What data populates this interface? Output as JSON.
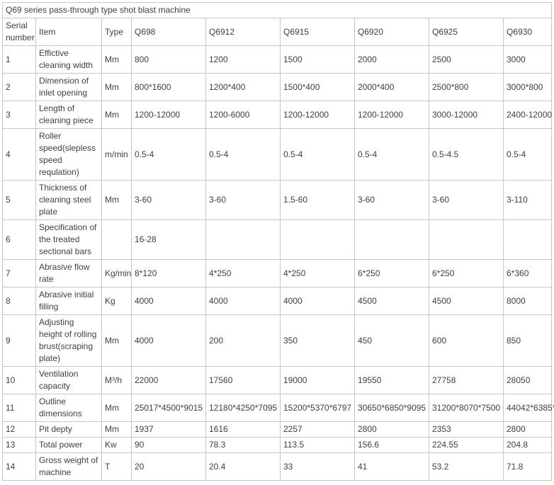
{
  "page_title": "Q69 series pass-through type shot blast machine",
  "table": {
    "columns": [
      "Serial number",
      "Item",
      "Type",
      "Q698",
      "Q6912",
      "Q6915",
      "Q6920",
      "Q6925",
      "Q6930"
    ],
    "rows": [
      {
        "serial": "1",
        "item": "Effictive cleaning width",
        "unit": "Mm",
        "values": [
          "800",
          "1200",
          "1500",
          "2000",
          "2500",
          "3000"
        ]
      },
      {
        "serial": "2",
        "item": "Dimension of inlet opening",
        "unit": "Mm",
        "values": [
          "800*1600",
          "1200*400",
          "1500*400",
          "2000*400",
          "2500*800",
          "3000*800"
        ]
      },
      {
        "serial": "3",
        "item": "Length of cleaning piece",
        "unit": "Mm",
        "values": [
          "1200-12000",
          "1200-6000",
          "1200-12000",
          "1200-12000",
          "3000-12000",
          "2400-12000"
        ]
      },
      {
        "serial": "4",
        "item": "Roller speed(slepless speed requlation)",
        "unit": "m/min",
        "values": [
          "0.5-4",
          "0.5-4",
          "0.5-4",
          "0.5-4",
          "0.5-4.5",
          "0.5-4"
        ]
      },
      {
        "serial": "5",
        "item": "Thickness of cleaning steel plate",
        "unit": "Mm",
        "values": [
          "3-60",
          "3-60",
          "1.5-60",
          "3-60",
          "3-60",
          "3-110"
        ]
      },
      {
        "serial": "6",
        "item": "Specification of the treated sectional bars",
        "unit": "",
        "values": [
          "16-28",
          "",
          "",
          "",
          "",
          ""
        ]
      },
      {
        "serial": "7",
        "item": "Abrasive flow rate",
        "unit": "Kg/min",
        "values": [
          "8*120",
          "4*250",
          "4*250",
          "6*250",
          "6*250",
          "6*360"
        ]
      },
      {
        "serial": "8",
        "item": "Abrasive initial filling",
        "unit": "Kg",
        "values": [
          "4000",
          "4000",
          "4000",
          "4500",
          "4500",
          "8000"
        ]
      },
      {
        "serial": "9",
        "item": "Adjusting height of rolling brust(scraping plate)",
        "unit": "Mm",
        "values": [
          "4000",
          "200",
          "350",
          "450",
          "600",
          "850"
        ]
      },
      {
        "serial": "10",
        "item": "Ventilation capacity",
        "unit": "M³/h",
        "values": [
          "22000",
          "17560",
          "19000",
          "19550",
          "27758",
          "28050"
        ]
      },
      {
        "serial": "11",
        "item": "Outline dimensions",
        "unit": "Mm",
        "values": [
          "25017*4500*9015",
          "12180*4250*7095",
          "15200*5370*6797",
          "30650*6850*9095",
          "31200*8070*7500",
          "44042*6385*"
        ]
      },
      {
        "serial": "12",
        "item": "Pit depty",
        "unit": "Mm",
        "values": [
          "1937",
          "1616",
          "2257",
          "2800",
          "2353",
          "2800"
        ]
      },
      {
        "serial": "13",
        "item": "Total power",
        "unit": "Kw",
        "values": [
          "90",
          "78.3",
          "113.5",
          "156.6",
          "224.55",
          "204.8"
        ]
      },
      {
        "serial": "14",
        "item": "Gross weight of machine",
        "unit": "T",
        "values": [
          "20",
          "20.4",
          "33",
          "41",
          "53.2",
          "71.8"
        ]
      }
    ]
  },
  "colors": {
    "border": "#c6c6c6",
    "text": "#404040",
    "background": "#ffffff"
  }
}
